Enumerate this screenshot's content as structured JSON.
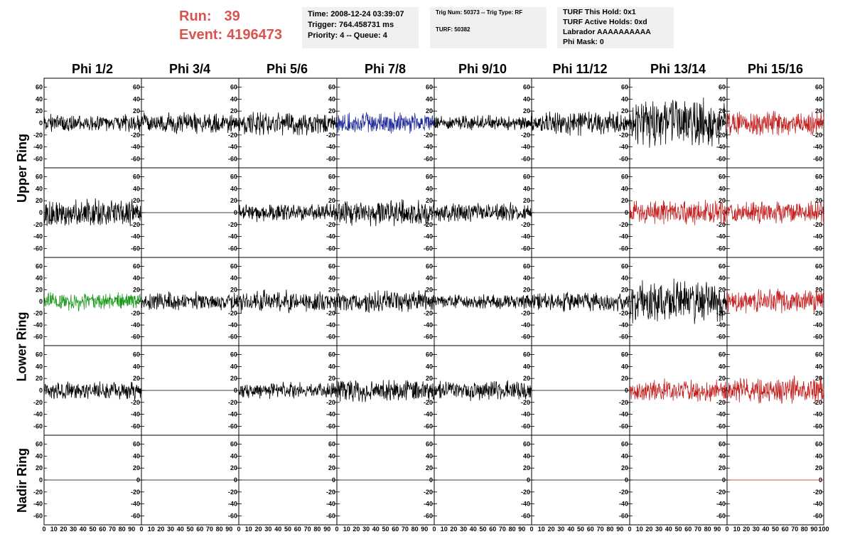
{
  "header": {
    "run_label": "Run:",
    "run_value": "39",
    "event_label": "Event:",
    "event_value": "4196473",
    "time_lines": [
      "Time: 2008-12-24 03:39:07",
      "Trigger: 764.458731 ms",
      "Priority: 4 -- Queue: 4"
    ],
    "trig_lines": [
      "Trig Num: 50373 -- Trig Type: RF",
      "",
      "TURF: 50382"
    ],
    "turf_lines": [
      "TURF This Hold: 0x1",
      "TURF Active Holds: 0xd",
      "Labrador AAAAAAAAAA",
      "Phi Mask: 0"
    ]
  },
  "columns": [
    "Phi 1/2",
    "Phi 3/4",
    "Phi 5/6",
    "Phi 7/8",
    "Phi 9/10",
    "Phi 11/12",
    "Phi 13/14",
    "Phi 15/16"
  ],
  "ring_labels": [
    "Upper Ring",
    "Lower Ring",
    "Nadir Ring"
  ],
  "colors": {
    "black": "#000000",
    "blue": "#1f2a9c",
    "green": "#1a9a1a",
    "red": "#c42020"
  },
  "chart_data": {
    "type": "line",
    "x_range": [
      0,
      100
    ],
    "y_range": [
      -75,
      75
    ],
    "y_ticks": [
      -60,
      -40,
      -20,
      0,
      20,
      40,
      60
    ],
    "y_tick_labels": [
      "-60",
      "-40",
      "-20",
      "0",
      "20",
      "40",
      "60"
    ],
    "x_tick_labels": [
      "0",
      "10",
      "20",
      "30",
      "40",
      "50",
      "60",
      "70",
      "80",
      "90",
      "100"
    ],
    "note_rows": [
      "upper-1",
      "upper-2",
      "lower-1",
      "lower-2",
      "nadir"
    ],
    "panels": [
      [
        {
          "color": "black",
          "amplitude": 12,
          "flat": false
        },
        {
          "color": "black",
          "amplitude": 14,
          "flat": false
        },
        {
          "color": "black",
          "amplitude": 16,
          "flat": false
        },
        {
          "color": "blue",
          "amplitude": 14,
          "flat": false
        },
        {
          "color": "black",
          "amplitude": 10,
          "flat": false
        },
        {
          "color": "black",
          "amplitude": 17,
          "flat": false
        },
        {
          "color": "black",
          "amplitude": 32,
          "flat": false
        },
        {
          "color": "red",
          "amplitude": 16,
          "flat": false
        }
      ],
      [
        {
          "color": "black",
          "amplitude": 18,
          "flat": false
        },
        {
          "color": "black",
          "amplitude": 0,
          "flat": true
        },
        {
          "color": "black",
          "amplitude": 12,
          "flat": false
        },
        {
          "color": "black",
          "amplitude": 18,
          "flat": false
        },
        {
          "color": "black",
          "amplitude": 13,
          "flat": false
        },
        {
          "color": "black",
          "amplitude": 0,
          "flat": true
        },
        {
          "color": "red",
          "amplitude": 17,
          "flat": false
        },
        {
          "color": "red",
          "amplitude": 16,
          "flat": false
        }
      ],
      [
        {
          "color": "green",
          "amplitude": 12,
          "flat": false
        },
        {
          "color": "black",
          "amplitude": 13,
          "flat": false
        },
        {
          "color": "black",
          "amplitude": 15,
          "flat": false
        },
        {
          "color": "black",
          "amplitude": 15,
          "flat": false
        },
        {
          "color": "black",
          "amplitude": 10,
          "flat": false
        },
        {
          "color": "black",
          "amplitude": 13,
          "flat": false
        },
        {
          "color": "black",
          "amplitude": 30,
          "flat": false
        },
        {
          "color": "red",
          "amplitude": 17,
          "flat": false
        }
      ],
      [
        {
          "color": "black",
          "amplitude": 12,
          "flat": false
        },
        {
          "color": "black",
          "amplitude": 0,
          "flat": true
        },
        {
          "color": "black",
          "amplitude": 11,
          "flat": false
        },
        {
          "color": "black",
          "amplitude": 15,
          "flat": false
        },
        {
          "color": "black",
          "amplitude": 13,
          "flat": false
        },
        {
          "color": "black",
          "amplitude": 0,
          "flat": true
        },
        {
          "color": "red",
          "amplitude": 16,
          "flat": false
        },
        {
          "color": "red",
          "amplitude": 18,
          "flat": false
        }
      ],
      [
        {
          "color": "black",
          "amplitude": 0,
          "flat": true
        },
        {
          "color": "black",
          "amplitude": 0,
          "flat": true
        },
        {
          "color": "black",
          "amplitude": 0,
          "flat": true
        },
        {
          "color": "black",
          "amplitude": 0,
          "flat": true
        },
        {
          "color": "black",
          "amplitude": 0,
          "flat": true
        },
        {
          "color": "black",
          "amplitude": 0,
          "flat": true
        },
        {
          "color": "black",
          "amplitude": 0,
          "flat": true
        },
        {
          "color": "red",
          "amplitude": 0,
          "flat": true
        }
      ]
    ]
  }
}
